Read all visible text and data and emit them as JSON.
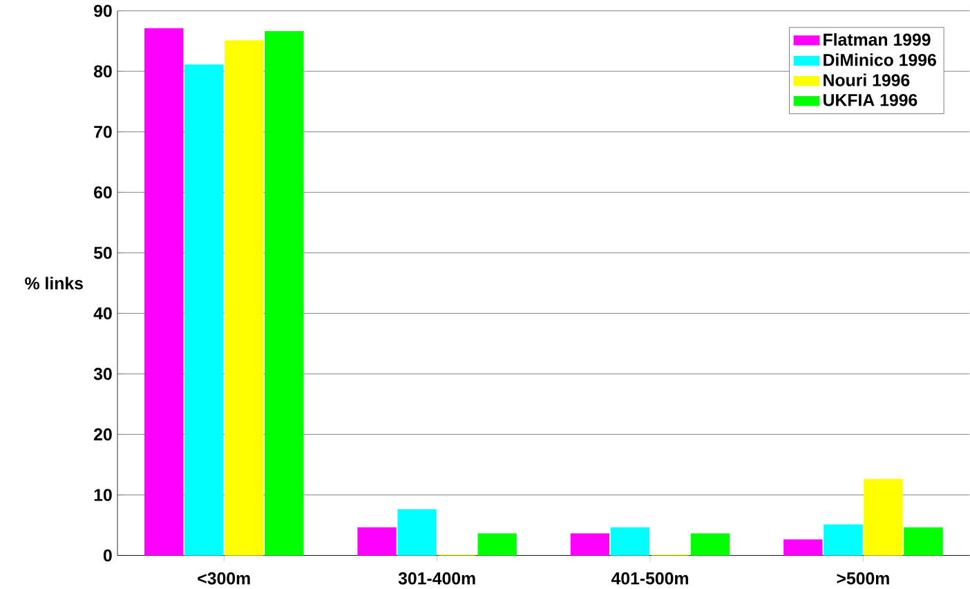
{
  "chart_data": {
    "type": "bar",
    "ylabel": "% links",
    "categories": [
      "<300m",
      "301-400m",
      "401-500m",
      ">500m"
    ],
    "series": [
      {
        "name": "Flatman 1999",
        "color": "#ff00ff",
        "values": [
          87,
          4.5,
          3.5,
          2.5
        ]
      },
      {
        "name": "DiMinico 1996",
        "color": "#00ffff",
        "values": [
          81,
          7.5,
          4.5,
          5
        ]
      },
      {
        "name": "Nouri 1996",
        "color": "#ffff00",
        "values": [
          85,
          0,
          0,
          12.5
        ]
      },
      {
        "name": "UKFIA 1996",
        "color": "#00ff00",
        "values": [
          86.5,
          3.5,
          3.5,
          4.5
        ]
      }
    ],
    "ylim": [
      0,
      90
    ],
    "yticks": [
      0,
      10,
      20,
      30,
      40,
      50,
      60,
      70,
      80,
      90
    ],
    "grid": "y",
    "legend": "top right"
  }
}
